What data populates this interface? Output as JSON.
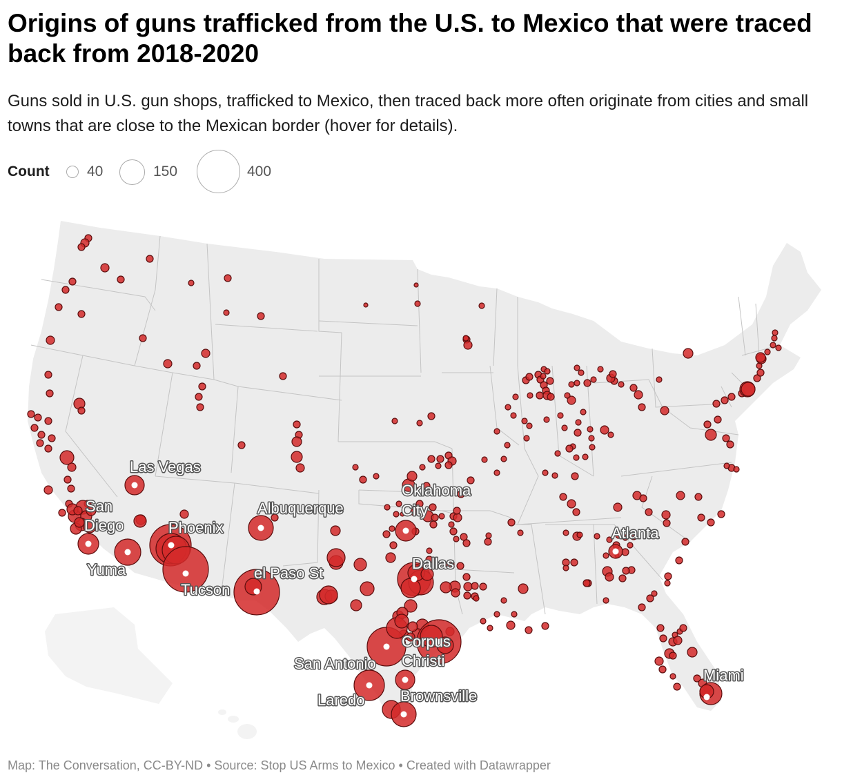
{
  "title": "Origins of guns trafficked from the U.S. to Mexico that were traced back from 2018-2020",
  "subtitle": "Guns sold in U.S. gun shops, trafficked to Mexico, then traced back more often originate from cities and small towns that are close to the Mexican border (hover for details).",
  "legend": {
    "label": "Count",
    "values": [
      "40",
      "150",
      "400"
    ]
  },
  "colors": {
    "marker_fill": "#d42a2a",
    "marker_stroke": "#5a0d0d",
    "land": "#ececec",
    "state_border": "#c4c4c4",
    "label_halo": "#555555"
  },
  "city_labels": [
    {
      "id": "las-vegas",
      "lines": [
        "Las Vegas"
      ]
    },
    {
      "id": "san-diego",
      "lines": [
        "San",
        "Diego"
      ]
    },
    {
      "id": "yuma",
      "lines": [
        "Yuma"
      ]
    },
    {
      "id": "phoenix",
      "lines": [
        "Phoenix"
      ]
    },
    {
      "id": "tucson",
      "lines": [
        "Tucson"
      ]
    },
    {
      "id": "albuquerque",
      "lines": [
        "Albuquerque"
      ]
    },
    {
      "id": "el-paso",
      "lines": [
        "el Paso St"
      ]
    },
    {
      "id": "oklahoma-city",
      "lines": [
        "Oklahoma",
        "City"
      ]
    },
    {
      "id": "dallas",
      "lines": [
        "Dallas"
      ]
    },
    {
      "id": "corpus-christi",
      "lines": [
        "Corpus",
        "Christi"
      ]
    },
    {
      "id": "san-antonio",
      "lines": [
        "San Antonio"
      ]
    },
    {
      "id": "laredo",
      "lines": [
        "Laredo"
      ]
    },
    {
      "id": "brownsville",
      "lines": [
        "Brownsville"
      ]
    },
    {
      "id": "atlanta",
      "lines": [
        "Atlanta"
      ]
    },
    {
      "id": "miami",
      "lines": [
        "Miami"
      ]
    }
  ],
  "footer": "Map: The Conversation, CC-BY-ND • Source: Stop US Arms to Mexico • Created with Datawrapper"
}
